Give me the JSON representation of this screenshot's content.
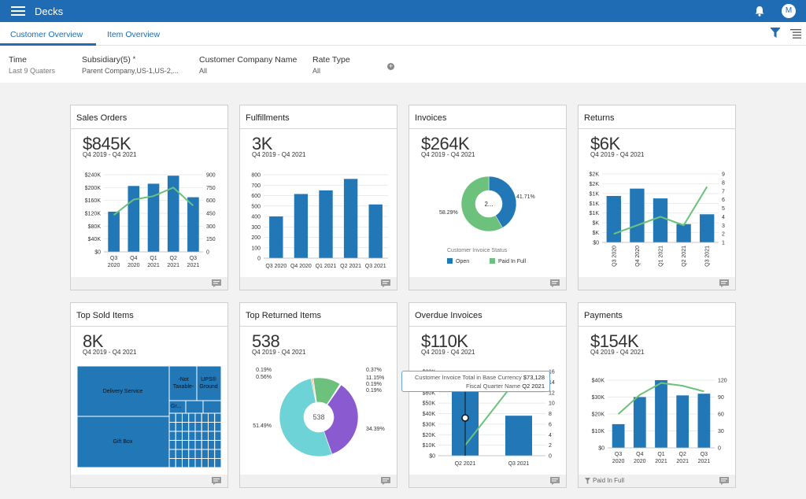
{
  "app": {
    "title": "Decks",
    "avatar_initial": "M"
  },
  "tabs": [
    {
      "label": "Customer Overview",
      "active": true
    },
    {
      "label": "Item Overview",
      "active": false
    }
  ],
  "filters": [
    {
      "label": "Time",
      "value": "Last 9 Quaters"
    },
    {
      "label": "Subsidiary(5)",
      "required_mark": "*",
      "value": "Parent Company,US-1,US-2,..."
    },
    {
      "label": "Customer Company Name",
      "value": "All"
    },
    {
      "label": "Rate Type",
      "value": "All"
    }
  ],
  "colors": {
    "brand": "#1f6cb4",
    "bar": "#2277b6",
    "line": "#6cc17c",
    "pie_green": "#6cc17c"
  },
  "cards": {
    "sales_orders": {
      "title": "Sales Orders",
      "kpi": "$845K",
      "period": "Q4 2019 - Q4 2021"
    },
    "fulfillments": {
      "title": "Fulfillments",
      "kpi": "3K",
      "period": "Q4 2019 - Q4 2021"
    },
    "invoices": {
      "title": "Invoices",
      "kpi": "$264K",
      "period": "Q4 2019 - Q4 2021",
      "center_label": "2...",
      "legend_title": "Customer Invoice Status"
    },
    "returns": {
      "title": "Returns",
      "kpi": "$6K",
      "period": "Q4 2019 - Q4 2021"
    },
    "top_sold": {
      "title": "Top Sold Items",
      "kpi": "8K",
      "period": "Q4 2019 - Q4 2021"
    },
    "top_returned": {
      "title": "Top Returned Items",
      "kpi": "538",
      "period": "Q4 2019 - Q4 2021",
      "center_label": "538"
    },
    "overdue": {
      "title": "Overdue Invoices",
      "kpi": "$110K",
      "period": "Q4 2019 - Q4 2021"
    },
    "payments": {
      "title": "Payments",
      "kpi": "$154K",
      "period": "Q4 2019 - Q4 2021",
      "footer_filter": "Paid In Full"
    }
  },
  "tooltip": {
    "metric_label": "Customer Invoice Total in Base Currency",
    "metric_value": "$73,128",
    "dim_label": "Fiscal Quarter Name",
    "dim_value": "Q2 2021"
  },
  "chart_data": [
    {
      "id": "sales_orders",
      "type": "bar",
      "categories": [
        "Q3 2020",
        "Q4 2020",
        "Q1 2021",
        "Q2 2021",
        "Q3 2021"
      ],
      "series": [
        {
          "name": "Amount",
          "type": "bar",
          "values": [
            125000,
            205000,
            212000,
            237000,
            170000
          ]
        },
        {
          "name": "Count",
          "type": "line",
          "axis": "right",
          "values": [
            430,
            610,
            650,
            750,
            540
          ]
        }
      ],
      "y_ticks": [
        "$0",
        "$40K",
        "$80K",
        "$120K",
        "$160K",
        "$200K",
        "$240K"
      ],
      "y2_ticks": [
        "0",
        "150",
        "300",
        "450",
        "600",
        "750",
        "900"
      ],
      "ylim": [
        0,
        240000
      ],
      "y2lim": [
        0,
        900
      ]
    },
    {
      "id": "fulfillments",
      "type": "bar",
      "categories": [
        "Q3 2020",
        "Q4 2020",
        "Q1 2021",
        "Q2 2021",
        "Q3 2021"
      ],
      "values": [
        400,
        615,
        650,
        760,
        515
      ],
      "y_ticks": [
        "0",
        "100",
        "200",
        "300",
        "400",
        "500",
        "600",
        "700",
        "800"
      ],
      "ylim": [
        0,
        800
      ]
    },
    {
      "id": "invoices",
      "type": "pie",
      "slices": [
        {
          "label": "Open",
          "value": 41.71,
          "display": "41.71%"
        },
        {
          "label": "Paid In Full",
          "value": 58.29,
          "display": "58.29%"
        }
      ]
    },
    {
      "id": "returns",
      "type": "bar",
      "categories": [
        "Q3 2020",
        "Q4 2020",
        "Q1 2021",
        "Q2 2021",
        "Q3 2021"
      ],
      "series": [
        {
          "name": "Amount",
          "type": "bar",
          "values": [
            1900,
            2200,
            1800,
            750,
            1150
          ]
        },
        {
          "name": "Count",
          "type": "line",
          "axis": "right",
          "values": [
            2,
            3,
            4,
            3,
            7.5
          ]
        }
      ],
      "y_ticks": [
        "$0",
        "$K",
        "$K",
        "$1K",
        "$1K",
        "$1K",
        "$2K",
        "$2K"
      ],
      "y2_ticks": [
        "1",
        "2",
        "3",
        "4",
        "5",
        "6",
        "7",
        "8",
        "9"
      ],
      "ylim": [
        0,
        2800
      ],
      "y2lim": [
        1,
        9
      ]
    },
    {
      "id": "top_sold",
      "type": "treemap",
      "labels": [
        "Delivery Service",
        "-Not Taxable-",
        "UPS® Ground",
        "Gift Box",
        "Gr..."
      ]
    },
    {
      "id": "top_returned",
      "type": "pie",
      "slices_left": [
        "0.19%",
        "0.56%",
        "51.49%"
      ],
      "slices_right": [
        "0.37%",
        "11.15%",
        "0.19%",
        "0.19%",
        "34.39%"
      ],
      "values": [
        51.49,
        34.39,
        11.15,
        0.56,
        0.37,
        0.19,
        0.19,
        0.19
      ]
    },
    {
      "id": "overdue",
      "type": "bar",
      "categories": [
        "Q2 2021",
        "Q3 2021"
      ],
      "series": [
        {
          "name": "Amount",
          "type": "bar",
          "values": [
            73128,
            38000
          ]
        },
        {
          "name": "Count",
          "type": "line",
          "axis": "right",
          "values": [
            2,
            15
          ]
        }
      ],
      "y_ticks": [
        "$0",
        "$10K",
        "$20K",
        "$30K",
        "$40K",
        "$50K",
        "$60K",
        "$70K",
        "$80K"
      ],
      "y2_ticks": [
        "0",
        "2",
        "4",
        "6",
        "8",
        "10",
        "12",
        "14",
        "16"
      ],
      "ylim": [
        0,
        80000
      ],
      "y2lim": [
        0,
        16
      ]
    },
    {
      "id": "payments",
      "type": "bar",
      "categories": [
        "Q3 2020",
        "Q4 2020",
        "Q1 2021",
        "Q2 2021",
        "Q3 2021"
      ],
      "series": [
        {
          "name": "Amount",
          "type": "bar",
          "values": [
            14000,
            30000,
            40000,
            31000,
            32000
          ]
        },
        {
          "name": "Count",
          "type": "line",
          "axis": "right",
          "values": [
            60,
            94,
            115,
            110,
            100
          ]
        }
      ],
      "y_ticks": [
        "$0",
        "$10K",
        "$20K",
        "$30K",
        "$40K"
      ],
      "y2_ticks": [
        "0",
        "30",
        "60",
        "90",
        "120"
      ],
      "ylim": [
        0,
        40000
      ],
      "y2lim": [
        0,
        120
      ]
    }
  ]
}
